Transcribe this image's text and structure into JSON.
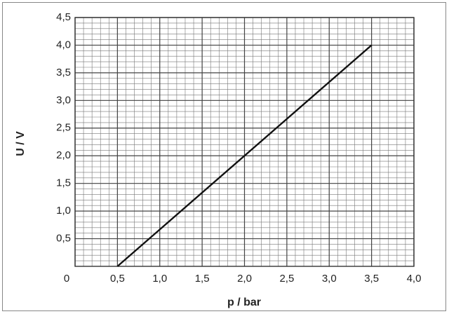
{
  "chart_data": {
    "type": "line",
    "xlabel": "p / bar",
    "ylabel": "U / V",
    "x": [
      0.5,
      3.5
    ],
    "series": [
      {
        "color": "#111111",
        "values": [
          0,
          4.0
        ]
      }
    ],
    "xlim": [
      0,
      4.0
    ],
    "ylim": [
      0,
      4.5
    ],
    "xticks": [
      0,
      {
        "value": 0.5,
        "label": "0,5"
      },
      {
        "value": 1.0,
        "label": "1,0"
      },
      {
        "value": 1.5,
        "label": "1,5"
      },
      {
        "value": 2.0,
        "label": "2,0"
      },
      {
        "value": 2.5,
        "label": "2,5"
      },
      {
        "value": 3.0,
        "label": "3,0"
      },
      {
        "value": 3.5,
        "label": "3,5"
      },
      {
        "value": 4.0,
        "label": "4,0"
      }
    ],
    "yticks": [
      {
        "value": 0.5,
        "label": "0,5"
      },
      {
        "value": 1.0,
        "label": "1,0"
      },
      {
        "value": 1.5,
        "label": "1,5"
      },
      {
        "value": 2.0,
        "label": "2,0"
      },
      {
        "value": 2.5,
        "label": "2,5"
      },
      {
        "value": 3.0,
        "label": "3,0"
      },
      {
        "value": 3.5,
        "label": "3,5"
      },
      {
        "value": 4.0,
        "label": "4,0"
      },
      {
        "value": 4.5,
        "label": "4,5"
      }
    ],
    "grid": true,
    "minor_grid": true
  }
}
